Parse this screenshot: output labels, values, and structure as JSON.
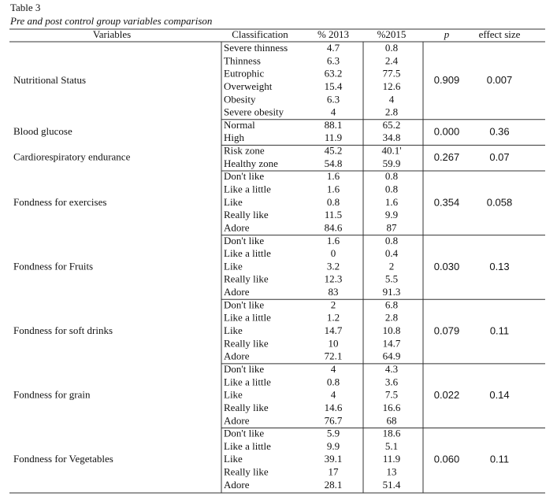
{
  "title": "Table 3",
  "subtitle": "Pre and post control group variables comparison",
  "table": {
    "header": [
      "Variables",
      "Classification",
      "% 2013",
      "%2015",
      "p",
      "effect size"
    ],
    "groups": [
      {
        "variable": "Nutritional Status",
        "p": "0.909",
        "effect_size": "0.007",
        "rows": [
          [
            "Severe thinness",
            "4.7",
            "0.8"
          ],
          [
            "Thinness",
            "6.3",
            "2.4"
          ],
          [
            "Eutrophic",
            "63.2",
            "77.5"
          ],
          [
            "Overweight",
            "15.4",
            "12.6"
          ],
          [
            "Obesity",
            "6.3",
            "4"
          ],
          [
            "Severe obesity",
            "4",
            "2.8"
          ]
        ]
      },
      {
        "variable": "Blood glucose",
        "p": "0.000",
        "effect_size": "0.36",
        "rows": [
          [
            "Normal",
            "88.1",
            "65.2"
          ],
          [
            "High",
            "11.9",
            "34.8"
          ]
        ]
      },
      {
        "variable": "Cardiorespiratory endurance",
        "p": "0.267",
        "effect_size": "0.07",
        "rows": [
          [
            "Risk zone",
            "45.2",
            "40.1'"
          ],
          [
            "Healthy zone",
            "54.8",
            "59.9"
          ]
        ]
      },
      {
        "variable": "Fondness for exercises",
        "p": "0.354",
        "effect_size": "0.058",
        "rows": [
          [
            "Don't like",
            "1.6",
            "0.8"
          ],
          [
            "Like a little",
            "1.6",
            "0.8"
          ],
          [
            "Like",
            "0.8",
            "1.6"
          ],
          [
            "Really like",
            "11.5",
            "9.9"
          ],
          [
            "Adore",
            "84.6",
            "87"
          ]
        ]
      },
      {
        "variable": "Fondness for Fruits",
        "p": "0.030",
        "effect_size": "0.13",
        "rows": [
          [
            "Don't like",
            "1.6",
            "0.8"
          ],
          [
            "Like a little",
            "0",
            "0.4"
          ],
          [
            "Like",
            "3.2",
            "2"
          ],
          [
            "Really like",
            "12.3",
            "5.5"
          ],
          [
            "Adore",
            "83",
            "91.3"
          ]
        ]
      },
      {
        "variable": "Fondness for soft drinks",
        "p": "0.079",
        "effect_size": "0.11",
        "rows": [
          [
            "Don't like",
            "2",
            "6.8"
          ],
          [
            "Like a little",
            "1.2",
            "2.8"
          ],
          [
            "Like",
            "14.7",
            "10.8"
          ],
          [
            "Really like",
            "10",
            "14.7"
          ],
          [
            "Adore",
            "72.1",
            "64.9"
          ]
        ]
      },
      {
        "variable": "Fondness for grain",
        "p": "0.022",
        "effect_size": "0.14",
        "rows": [
          [
            "Don't like",
            "4",
            "4.3"
          ],
          [
            "Like a little",
            "0.8",
            "3.6"
          ],
          [
            "Like",
            "4",
            "7.5"
          ],
          [
            "Really like",
            "14.6",
            "16.6"
          ],
          [
            "Adore",
            "76.7",
            "68"
          ]
        ]
      },
      {
        "variable": "Fondness for Vegetables",
        "p": "0.060",
        "effect_size": "0.11",
        "rows": [
          [
            "Don't like",
            "5.9",
            "18.6"
          ],
          [
            "Like a little",
            "9.9",
            "5.1"
          ],
          [
            "Like",
            "39.1",
            "11.9"
          ],
          [
            "Really like",
            "17",
            "13"
          ],
          [
            "Adore",
            "28.1",
            "51.4"
          ]
        ]
      }
    ]
  }
}
